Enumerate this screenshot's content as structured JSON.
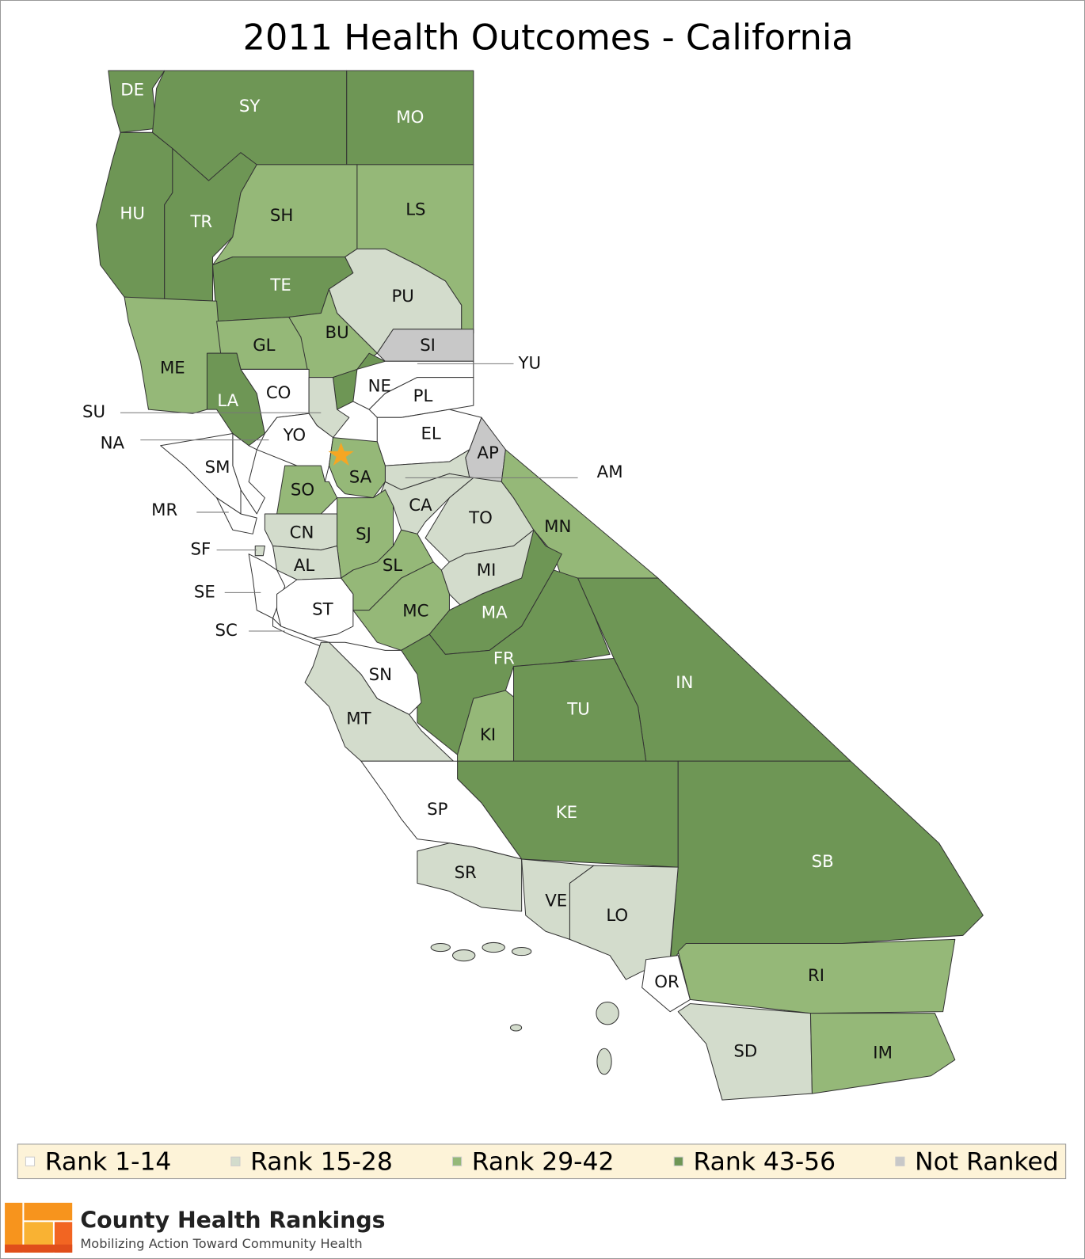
{
  "title": "2011 Health Outcomes - California",
  "map": {
    "counties": [
      {
        "code": "DE",
        "group": 3
      },
      {
        "code": "SY",
        "group": 3
      },
      {
        "code": "MO",
        "group": 3
      },
      {
        "code": "HU",
        "group": 3
      },
      {
        "code": "TR",
        "group": 3
      },
      {
        "code": "SH",
        "group": 2
      },
      {
        "code": "LS",
        "group": 2
      },
      {
        "code": "TE",
        "group": 3
      },
      {
        "code": "PU",
        "group": 1
      },
      {
        "code": "ME",
        "group": 2
      },
      {
        "code": "GL",
        "group": 2
      },
      {
        "code": "BU",
        "group": 2
      },
      {
        "code": "SI",
        "group": 4
      },
      {
        "code": "YU",
        "group": 3
      },
      {
        "code": "NE",
        "group": 0
      },
      {
        "code": "PL",
        "group": 0
      },
      {
        "code": "LA",
        "group": 3
      },
      {
        "code": "CO",
        "group": 0
      },
      {
        "code": "SU",
        "group": 1
      },
      {
        "code": "EL",
        "group": 0
      },
      {
        "code": "AP",
        "group": 4
      },
      {
        "code": "AM",
        "group": 1
      },
      {
        "code": "YO",
        "group": 0
      },
      {
        "code": "NA",
        "group": 0
      },
      {
        "code": "SM",
        "group": 0
      },
      {
        "code": "MR",
        "group": 0
      },
      {
        "code": "SA",
        "group": 2
      },
      {
        "code": "SO",
        "group": 2
      },
      {
        "code": "CA",
        "group": 1
      },
      {
        "code": "TO",
        "group": 1
      },
      {
        "code": "MN",
        "group": 2
      },
      {
        "code": "CN",
        "group": 1
      },
      {
        "code": "SJ",
        "group": 2
      },
      {
        "code": "SF",
        "group": 1
      },
      {
        "code": "AL",
        "group": 1
      },
      {
        "code": "SL",
        "group": 2
      },
      {
        "code": "MI",
        "group": 1
      },
      {
        "code": "SE",
        "group": 0
      },
      {
        "code": "ST",
        "group": 0
      },
      {
        "code": "SC",
        "group": 0
      },
      {
        "code": "MA",
        "group": 3
      },
      {
        "code": "MC",
        "group": 2
      },
      {
        "code": "FR",
        "group": 3
      },
      {
        "code": "SN",
        "group": 0
      },
      {
        "code": "IN",
        "group": 3
      },
      {
        "code": "TU",
        "group": 3
      },
      {
        "code": "KI",
        "group": 2
      },
      {
        "code": "MT",
        "group": 1
      },
      {
        "code": "KE",
        "group": 3
      },
      {
        "code": "SP",
        "group": 0
      },
      {
        "code": "SB",
        "group": 3
      },
      {
        "code": "SR",
        "group": 1
      },
      {
        "code": "VE",
        "group": 1
      },
      {
        "code": "LO",
        "group": 1
      },
      {
        "code": "OR",
        "group": 0
      },
      {
        "code": "RI",
        "group": 2
      },
      {
        "code": "SD",
        "group": 1
      },
      {
        "code": "IM",
        "group": 2
      }
    ]
  },
  "legend": {
    "items": [
      {
        "label": "Rank 1-14",
        "color": "#ffffff"
      },
      {
        "label": "Rank 15-28",
        "color": "#d3dccc"
      },
      {
        "label": "Rank 29-42",
        "color": "#95b878"
      },
      {
        "label": "Rank 43-56",
        "color": "#6e9655"
      },
      {
        "label": "Not Ranked",
        "color": "#c8c8c8"
      }
    ]
  },
  "logo": {
    "name": "County Health Rankings",
    "tagline": "Mobilizing Action Toward Community Health"
  }
}
